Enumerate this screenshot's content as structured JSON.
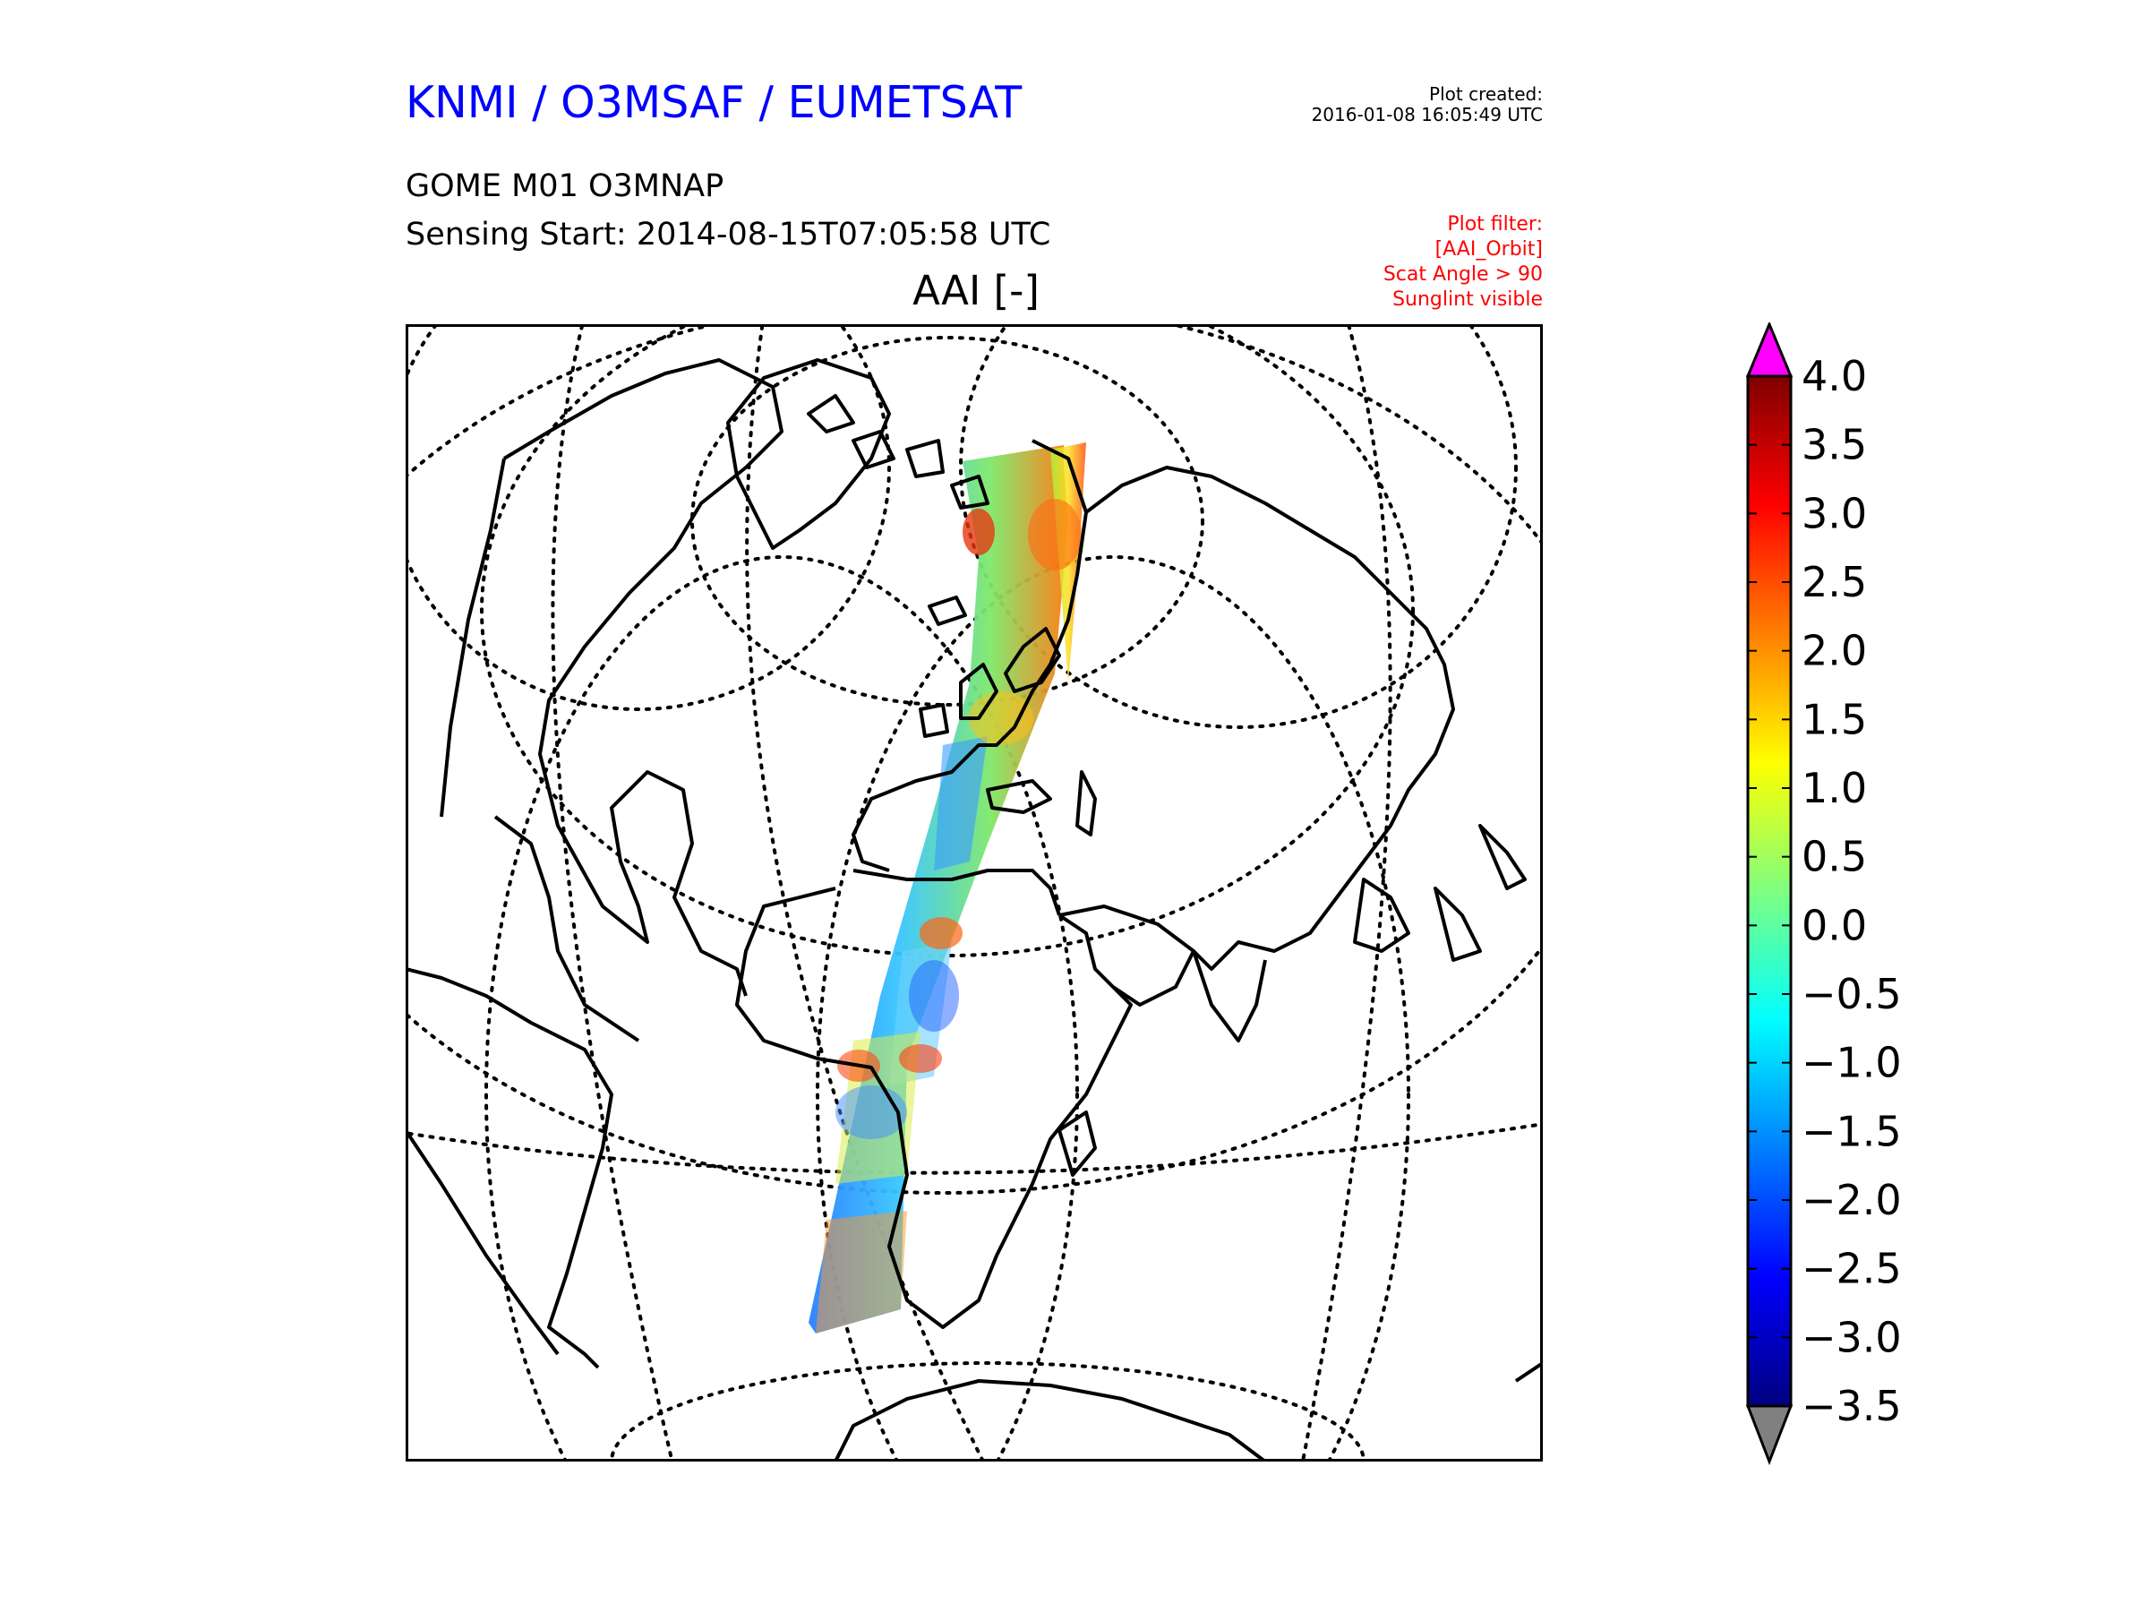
{
  "header": {
    "organisation": "KNMI / O3MSAF / EUMETSAT",
    "plot_created_label": "Plot created:",
    "plot_created_timestamp": "2016-01-08 16:05:49 UTC",
    "product": "GOME M01 O3MNAP",
    "sensing_start": "Sensing Start: 2014-08-15T07:05:58 UTC",
    "filter_lines": [
      "Plot filter:",
      "[AAI_Orbit]",
      "Scat Angle > 90",
      "Sunglint visible"
    ]
  },
  "map": {
    "title": "AAI [-]",
    "projection": "orthographic",
    "graticule": "dotted",
    "coastlines": "black",
    "swath_description_shown": false
  },
  "colorbar": {
    "min": -3.5,
    "max": 4.0,
    "ticks": [
      "4.0",
      "3.5",
      "3.0",
      "2.5",
      "2.0",
      "1.5",
      "1.0",
      "0.5",
      "0.0",
      "−0.5",
      "−1.0",
      "−1.5",
      "−2.0",
      "−2.5",
      "−3.0",
      "−3.5"
    ],
    "tick_values": [
      4.0,
      3.5,
      3.0,
      2.5,
      2.0,
      1.5,
      1.0,
      0.5,
      0.0,
      -0.5,
      -1.0,
      -1.5,
      -2.0,
      -2.5,
      -3.0,
      -3.5
    ],
    "colormap": [
      "#00007f",
      "#0000ff",
      "#007fff",
      "#00ffff",
      "#7fff7f",
      "#ffff00",
      "#ff7f00",
      "#ff0000",
      "#7f0000"
    ],
    "over_color": "#ff00ff",
    "under_color": "#808080"
  }
}
